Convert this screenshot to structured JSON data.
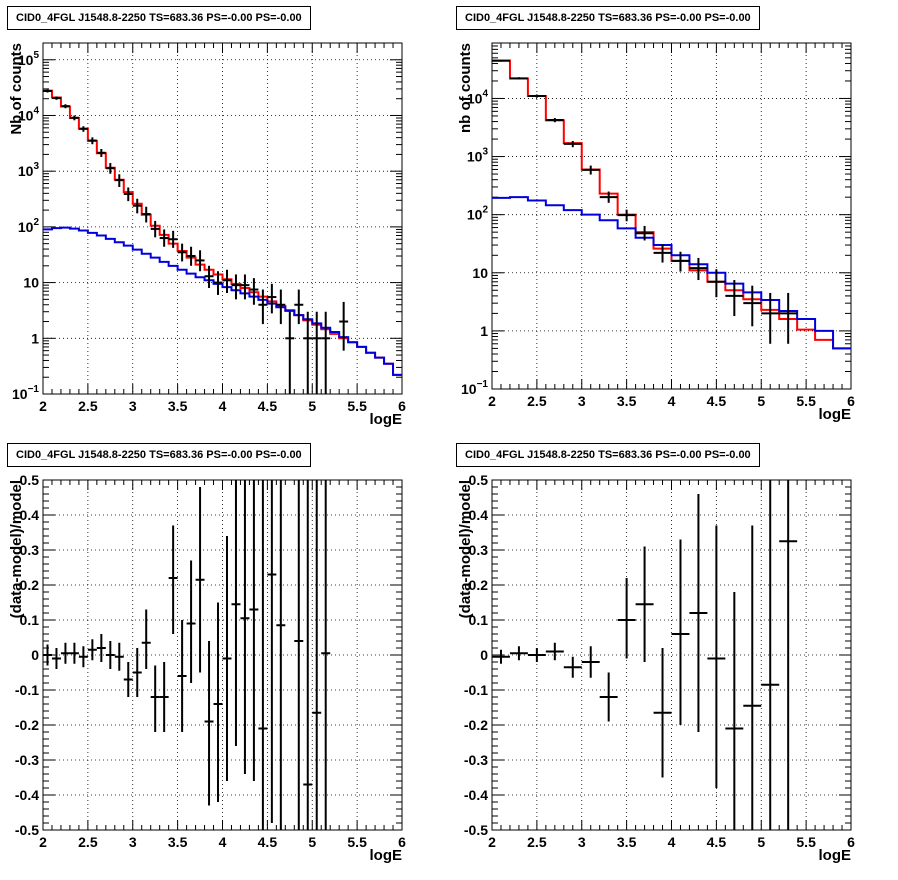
{
  "chart_data": [
    {
      "type": "histogram",
      "title": "CID0_4FGL J1548.8-2250 TS=683.36 PS=-0.00 PS=-0.00",
      "xlabel": "logE",
      "ylabel": "Nb of counts",
      "xlim": [
        2,
        6
      ],
      "ylim": [
        0.1,
        200000
      ],
      "yscale": "log",
      "grid": true,
      "xticks": [
        "2",
        "2.5",
        "3",
        "3.5",
        "4",
        "4.5",
        "5",
        "5.5",
        "6"
      ],
      "yticks": [
        {
          "v": 0.1,
          "base": "10",
          "exp": "−1"
        },
        {
          "v": 1,
          "base": "1",
          "exp": ""
        },
        {
          "v": 10,
          "base": "10",
          "exp": ""
        },
        {
          "v": 100,
          "base": "10",
          "exp": "2"
        },
        {
          "v": 1000,
          "base": "10",
          "exp": "3"
        },
        {
          "v": 10000,
          "base": "10",
          "exp": "4"
        },
        {
          "v": 100000,
          "base": "10",
          "exp": "5"
        }
      ],
      "bin_width": 0.1,
      "series": [
        {
          "color": "#ff0000",
          "role": "total-model",
          "x": [
            2.0,
            2.1,
            2.2,
            2.3,
            2.4,
            2.5,
            2.6,
            2.7,
            2.8,
            2.9,
            3.0,
            3.1,
            3.2,
            3.3,
            3.4,
            3.5,
            3.6,
            3.7,
            3.8,
            3.9,
            4.0,
            4.1,
            4.2,
            4.3,
            4.4,
            4.5,
            4.6,
            4.7,
            4.8,
            4.9,
            5.0,
            5.1,
            5.2,
            5.3,
            5.4,
            5.5,
            5.6,
            5.7,
            5.8,
            5.9
          ],
          "values": [
            28000,
            21000,
            14500,
            9000,
            5800,
            3500,
            2100,
            1150,
            700,
            420,
            260,
            165,
            105,
            72,
            50,
            37,
            28,
            21,
            17,
            14,
            11.5,
            9.5,
            8,
            6.7,
            5.6,
            4.6,
            3.8,
            3.2,
            2.6,
            2.1,
            1.75,
            1.45,
            1.2,
            1.0,
            0.85,
            0.7,
            0.55,
            0.45,
            0.35,
            0.22
          ]
        },
        {
          "color": "#0000dd",
          "role": "background-model",
          "x": [
            2.0,
            2.1,
            2.2,
            2.3,
            2.4,
            2.5,
            2.6,
            2.7,
            2.8,
            2.9,
            3.0,
            3.1,
            3.2,
            3.3,
            3.4,
            3.5,
            3.6,
            3.7,
            3.8,
            3.9,
            4.0,
            4.1,
            4.2,
            4.3,
            4.4,
            4.5,
            4.6,
            4.7,
            4.8,
            4.9,
            5.0,
            5.1,
            5.2,
            5.3,
            5.4,
            5.5,
            5.6,
            5.7,
            5.8,
            5.9
          ],
          "values": [
            90,
            95,
            97,
            93,
            86,
            78,
            70,
            61,
            53,
            46,
            39,
            33,
            28,
            23.5,
            20,
            17,
            14.5,
            12.5,
            11,
            9.5,
            8.3,
            7.3,
            6.4,
            5.6,
            4.9,
            4.2,
            3.6,
            3.1,
            2.6,
            2.2,
            1.85,
            1.55,
            1.3,
            1.05,
            0.85,
            0.7,
            0.55,
            0.45,
            0.35,
            0.22
          ]
        }
      ],
      "points": [
        {
          "x": 2.05,
          "y": 27500,
          "lo": 25800,
          "hi": 29200
        },
        {
          "x": 2.15,
          "y": 20500,
          "lo": 19100,
          "hi": 21900
        },
        {
          "x": 2.25,
          "y": 14700,
          "lo": 13500,
          "hi": 15900
        },
        {
          "x": 2.35,
          "y": 9100,
          "lo": 8200,
          "hi": 10000
        },
        {
          "x": 2.45,
          "y": 5750,
          "lo": 5100,
          "hi": 6400
        },
        {
          "x": 2.55,
          "y": 3550,
          "lo": 3050,
          "hi": 4050
        },
        {
          "x": 2.65,
          "y": 2140,
          "lo": 1800,
          "hi": 2500
        },
        {
          "x": 2.75,
          "y": 1130,
          "lo": 900,
          "hi": 1400
        },
        {
          "x": 2.85,
          "y": 690,
          "lo": 520,
          "hi": 880
        },
        {
          "x": 2.95,
          "y": 390,
          "lo": 290,
          "hi": 510
        },
        {
          "x": 3.05,
          "y": 240,
          "lo": 175,
          "hi": 320
        },
        {
          "x": 3.15,
          "y": 170,
          "lo": 120,
          "hi": 230
        },
        {
          "x": 3.25,
          "y": 92,
          "lo": 65,
          "hi": 128
        },
        {
          "x": 3.35,
          "y": 63,
          "lo": 44,
          "hi": 90
        },
        {
          "x": 3.45,
          "y": 60,
          "lo": 42,
          "hi": 85
        },
        {
          "x": 3.55,
          "y": 35,
          "lo": 24,
          "hi": 50
        },
        {
          "x": 3.65,
          "y": 30,
          "lo": 20,
          "hi": 44
        },
        {
          "x": 3.75,
          "y": 25,
          "lo": 16,
          "hi": 38
        },
        {
          "x": 3.85,
          "y": 13,
          "lo": 8,
          "hi": 20
        },
        {
          "x": 3.95,
          "y": 10,
          "lo": 6,
          "hi": 16
        },
        {
          "x": 4.05,
          "y": 11,
          "lo": 6.5,
          "hi": 17
        },
        {
          "x": 4.15,
          "y": 9,
          "lo": 5,
          "hi": 14
        },
        {
          "x": 4.25,
          "y": 9,
          "lo": 5,
          "hi": 14
        },
        {
          "x": 4.35,
          "y": 7.5,
          "lo": 4,
          "hi": 12
        },
        {
          "x": 4.45,
          "y": 4,
          "lo": 1.8,
          "hi": 7.5
        },
        {
          "x": 4.55,
          "y": 5.5,
          "lo": 2.8,
          "hi": 9.5
        },
        {
          "x": 4.65,
          "y": 4,
          "lo": 1.8,
          "hi": 7.5
        },
        {
          "x": 4.75,
          "y": 1,
          "lo": 0.1,
          "hi": 3
        },
        {
          "x": 4.85,
          "y": 4,
          "lo": 1.8,
          "hi": 7.5
        },
        {
          "x": 4.95,
          "y": 1,
          "lo": 0.1,
          "hi": 3
        },
        {
          "x": 5.05,
          "y": 1,
          "lo": 0.1,
          "hi": 3
        },
        {
          "x": 5.15,
          "y": 1,
          "lo": 0.1,
          "hi": 3
        },
        {
          "x": 5.35,
          "y": 2,
          "lo": 0.6,
          "hi": 4.5
        }
      ]
    },
    {
      "type": "histogram",
      "title": "CID0_4FGL J1548.8-2250 TS=683.36 PS=-0.00 PS=-0.00",
      "xlabel": "logE",
      "ylabel": "nb of counts",
      "xlim": [
        2,
        6
      ],
      "ylim": [
        0.1,
        90000
      ],
      "yscale": "log",
      "grid": true,
      "xticks": [
        "2",
        "2.5",
        "3",
        "3.5",
        "4",
        "4.5",
        "5",
        "5.5",
        "6"
      ],
      "yticks": [
        {
          "v": 0.1,
          "base": "10",
          "exp": "−1"
        },
        {
          "v": 1,
          "base": "1",
          "exp": ""
        },
        {
          "v": 10,
          "base": "10",
          "exp": ""
        },
        {
          "v": 100,
          "base": "10",
          "exp": "2"
        },
        {
          "v": 1000,
          "base": "10",
          "exp": "3"
        },
        {
          "v": 10000,
          "base": "10",
          "exp": "4"
        }
      ],
      "bin_width": 0.2,
      "series": [
        {
          "color": "#ff0000",
          "role": "total-model",
          "x": [
            2.0,
            2.2,
            2.4,
            2.6,
            2.8,
            3.0,
            3.2,
            3.4,
            3.6,
            3.8,
            4.0,
            4.2,
            4.4,
            4.6,
            4.8,
            5.0,
            5.2,
            5.4,
            5.6,
            5.8
          ],
          "values": [
            45000,
            22000,
            11000,
            4200,
            1700,
            600,
            230,
            100,
            50,
            26,
            16,
            11,
            7,
            5,
            3.5,
            2.3,
            1.6,
            1.05,
            0.7,
            0.5
          ]
        },
        {
          "color": "#0000dd",
          "role": "background-model",
          "x": [
            2.0,
            2.2,
            2.4,
            2.6,
            2.8,
            3.0,
            3.2,
            3.4,
            3.6,
            3.8,
            4.0,
            4.2,
            4.4,
            4.6,
            4.8,
            5.0,
            5.2,
            5.4,
            5.6,
            5.8
          ],
          "values": [
            195,
            200,
            175,
            145,
            120,
            100,
            80,
            58,
            40,
            30,
            20,
            14,
            10,
            6.5,
            4.6,
            3.4,
            2.2,
            1.6,
            1.0,
            0.5
          ]
        }
      ],
      "points": [
        {
          "x": 2.1,
          "y": 44500,
          "lo": 43000,
          "hi": 46000
        },
        {
          "x": 2.3,
          "y": 22200,
          "lo": 21200,
          "hi": 23200
        },
        {
          "x": 2.5,
          "y": 11000,
          "lo": 10300,
          "hi": 11700
        },
        {
          "x": 2.7,
          "y": 4250,
          "lo": 3900,
          "hi": 4600
        },
        {
          "x": 2.9,
          "y": 1650,
          "lo": 1450,
          "hi": 1850
        },
        {
          "x": 3.1,
          "y": 590,
          "lo": 490,
          "hi": 700
        },
        {
          "x": 3.3,
          "y": 200,
          "lo": 160,
          "hi": 250
        },
        {
          "x": 3.5,
          "y": 98,
          "lo": 77,
          "hi": 122
        },
        {
          "x": 3.7,
          "y": 48,
          "lo": 36,
          "hi": 64
        },
        {
          "x": 3.9,
          "y": 22,
          "lo": 15,
          "hi": 31
        },
        {
          "x": 4.1,
          "y": 16,
          "lo": 10.5,
          "hi": 23
        },
        {
          "x": 4.3,
          "y": 12,
          "lo": 7.5,
          "hi": 18
        },
        {
          "x": 4.5,
          "y": 7,
          "lo": 3.8,
          "hi": 11.5
        },
        {
          "x": 4.7,
          "y": 4,
          "lo": 1.8,
          "hi": 7.5
        },
        {
          "x": 4.9,
          "y": 3,
          "lo": 1.2,
          "hi": 6
        },
        {
          "x": 5.1,
          "y": 2,
          "lo": 0.6,
          "hi": 4.5
        },
        {
          "x": 5.3,
          "y": 2,
          "lo": 0.6,
          "hi": 4.5
        }
      ]
    },
    {
      "type": "scatter",
      "title": "CID0_4FGL J1548.8-2250 TS=683.36 PS=-0.00 PS=-0.00",
      "xlabel": "logE",
      "ylabel": "(data-model)/model",
      "xlim": [
        2,
        6
      ],
      "ylim": [
        -0.5,
        0.5
      ],
      "grid": true,
      "xticks": [
        "2",
        "2.5",
        "3",
        "3.5",
        "4",
        "4.5",
        "5",
        "5.5",
        "6"
      ],
      "yticks": [
        "-0.5",
        "-0.4",
        "-0.3",
        "-0.2",
        "-0.1",
        "0",
        "0.1",
        "0.2",
        "0.3",
        "0.4",
        "0.5"
      ],
      "bin_width": 0.1,
      "points": [
        {
          "x": 2.05,
          "y": 0.0,
          "lo": -0.03,
          "hi": 0.03
        },
        {
          "x": 2.15,
          "y": -0.01,
          "lo": -0.04,
          "hi": 0.02
        },
        {
          "x": 2.25,
          "y": 0.005,
          "lo": -0.025,
          "hi": 0.035
        },
        {
          "x": 2.35,
          "y": 0.005,
          "lo": -0.025,
          "hi": 0.035
        },
        {
          "x": 2.45,
          "y": -0.005,
          "lo": -0.035,
          "hi": 0.025
        },
        {
          "x": 2.55,
          "y": 0.015,
          "lo": -0.015,
          "hi": 0.045
        },
        {
          "x": 2.65,
          "y": 0.02,
          "lo": -0.02,
          "hi": 0.06
        },
        {
          "x": 2.75,
          "y": 0.0,
          "lo": -0.04,
          "hi": 0.04
        },
        {
          "x": 2.85,
          "y": -0.005,
          "lo": -0.045,
          "hi": 0.035
        },
        {
          "x": 2.95,
          "y": -0.07,
          "lo": -0.12,
          "hi": -0.02
        },
        {
          "x": 3.05,
          "y": -0.05,
          "lo": -0.12,
          "hi": 0.02
        },
        {
          "x": 3.15,
          "y": 0.035,
          "lo": -0.04,
          "hi": 0.13
        },
        {
          "x": 3.25,
          "y": -0.12,
          "lo": -0.22,
          "hi": -0.03
        },
        {
          "x": 3.35,
          "y": -0.12,
          "lo": -0.22,
          "hi": -0.02
        },
        {
          "x": 3.45,
          "y": 0.22,
          "lo": 0.06,
          "hi": 0.37
        },
        {
          "x": 3.55,
          "y": -0.06,
          "lo": -0.22,
          "hi": 0.1
        },
        {
          "x": 3.65,
          "y": 0.09,
          "lo": -0.08,
          "hi": 0.27
        },
        {
          "x": 3.75,
          "y": 0.215,
          "lo": -0.05,
          "hi": 0.48
        },
        {
          "x": 3.85,
          "y": -0.19,
          "lo": -0.43,
          "hi": 0.04
        },
        {
          "x": 3.95,
          "y": -0.14,
          "lo": -0.42,
          "hi": 0.15
        },
        {
          "x": 4.05,
          "y": -0.01,
          "lo": -0.36,
          "hi": 0.34
        },
        {
          "x": 4.15,
          "y": 0.145,
          "lo": -0.26,
          "hi": 0.5
        },
        {
          "x": 4.25,
          "y": 0.105,
          "lo": -0.34,
          "hi": 0.5
        },
        {
          "x": 4.35,
          "y": 0.13,
          "lo": -0.36,
          "hi": 0.5
        },
        {
          "x": 4.45,
          "y": -0.21,
          "lo": -0.5,
          "hi": 0.5
        },
        {
          "x": 4.55,
          "y": 0.23,
          "lo": -0.48,
          "hi": 0.5
        },
        {
          "x": 4.65,
          "y": 0.085,
          "lo": -0.5,
          "hi": 0.5
        },
        {
          "x": 4.85,
          "y": 0.04,
          "lo": -0.5,
          "hi": 0.5
        },
        {
          "x": 4.95,
          "y": -0.37,
          "lo": -0.5,
          "hi": 0.5
        },
        {
          "x": 5.05,
          "y": -0.165,
          "lo": -0.5,
          "hi": 0.5
        },
        {
          "x": 5.15,
          "y": 0.005,
          "lo": -0.5,
          "hi": 0.5
        }
      ]
    },
    {
      "type": "scatter",
      "title": "CID0_4FGL J1548.8-2250 TS=683.36 PS=-0.00 PS=-0.00",
      "xlabel": "logE",
      "ylabel": "(data-model)/model",
      "xlim": [
        2,
        6
      ],
      "ylim": [
        -0.5,
        0.5
      ],
      "grid": true,
      "xticks": [
        "2",
        "2.5",
        "3",
        "3.5",
        "4",
        "4.5",
        "5",
        "5.5",
        "6"
      ],
      "yticks": [
        "-0.5",
        "-0.4",
        "-0.3",
        "-0.2",
        "-0.1",
        "0",
        "0.1",
        "0.2",
        "0.3",
        "0.4",
        "0.5"
      ],
      "bin_width": 0.2,
      "points": [
        {
          "x": 2.1,
          "y": -0.005,
          "lo": -0.025,
          "hi": 0.015
        },
        {
          "x": 2.3,
          "y": 0.005,
          "lo": -0.015,
          "hi": 0.025
        },
        {
          "x": 2.5,
          "y": 0.0,
          "lo": -0.02,
          "hi": 0.02
        },
        {
          "x": 2.7,
          "y": 0.01,
          "lo": -0.015,
          "hi": 0.035
        },
        {
          "x": 2.9,
          "y": -0.035,
          "lo": -0.065,
          "hi": -0.005
        },
        {
          "x": 3.1,
          "y": -0.02,
          "lo": -0.065,
          "hi": 0.025
        },
        {
          "x": 3.3,
          "y": -0.12,
          "lo": -0.19,
          "hi": -0.05
        },
        {
          "x": 3.5,
          "y": 0.1,
          "lo": -0.01,
          "hi": 0.22
        },
        {
          "x": 3.7,
          "y": 0.145,
          "lo": -0.02,
          "hi": 0.31
        },
        {
          "x": 3.9,
          "y": -0.165,
          "lo": -0.35,
          "hi": 0.02
        },
        {
          "x": 4.1,
          "y": 0.06,
          "lo": -0.2,
          "hi": 0.33
        },
        {
          "x": 4.3,
          "y": 0.12,
          "lo": -0.22,
          "hi": 0.46
        },
        {
          "x": 4.5,
          "y": -0.01,
          "lo": -0.38,
          "hi": 0.37
        },
        {
          "x": 4.7,
          "y": -0.21,
          "lo": -0.5,
          "hi": 0.18
        },
        {
          "x": 4.9,
          "y": -0.145,
          "lo": -0.5,
          "hi": 0.37
        },
        {
          "x": 5.1,
          "y": -0.085,
          "lo": -0.5,
          "hi": 0.5
        },
        {
          "x": 5.3,
          "y": 0.325,
          "lo": -0.5,
          "hi": 0.5
        }
      ]
    }
  ]
}
